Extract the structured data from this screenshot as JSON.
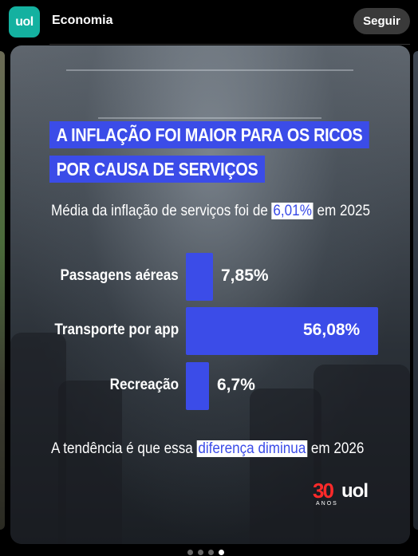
{
  "header": {
    "avatar_text": "uol",
    "account_name": "Economia",
    "follow_label": "Seguir"
  },
  "post": {
    "headline_line1": "A INFLAÇÃO FOI MAIOR PARA OS RICOS",
    "headline_line2": "POR CAUSA DE SERVIÇOS",
    "subtitle_before": "Média da inflação de serviços foi de ",
    "subtitle_highlight": "6,01%",
    "subtitle_after": " em 2025",
    "footnote_before": "A tendência é que essa ",
    "footnote_highlight": "diferença diminua",
    "footnote_after": " em 2026",
    "logo_number": "30",
    "logo_brand": "uol",
    "logo_sub": "ANOS"
  },
  "chart_data": {
    "type": "bar",
    "orientation": "horizontal",
    "categories": [
      "Passagens aéreas",
      "Transporte por app",
      "Recreação"
    ],
    "values": [
      7.85,
      56.08,
      6.7
    ],
    "value_labels": [
      "7,85%",
      "56,08%",
      "6,7%"
    ],
    "unit": "%",
    "bar_color": "#3b4ce8"
  },
  "carousel": {
    "page_count": 4,
    "active_index": 3
  },
  "colors": {
    "accent": "#3b4ce8",
    "avatar_bg": "#14b1a0",
    "logo_red": "#ff2a2a"
  }
}
